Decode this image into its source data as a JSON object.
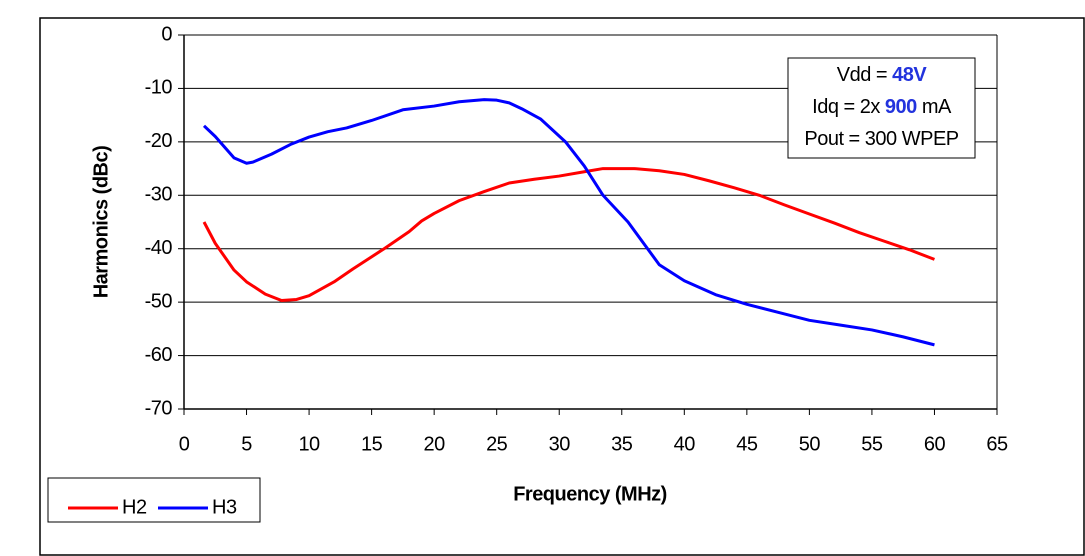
{
  "chart_data": {
    "type": "line",
    "xlabel": "Frequency (MHz)",
    "ylabel": "Harmonics (dBc)",
    "xlim": [
      0,
      65
    ],
    "xticks": [
      0,
      5,
      10,
      15,
      20,
      25,
      30,
      35,
      40,
      45,
      50,
      55,
      60,
      65
    ],
    "ylim": [
      -70,
      0
    ],
    "yticks": [
      -70,
      -60,
      -50,
      -40,
      -30,
      -20,
      -10,
      0
    ],
    "grid": true,
    "legend": "bottom-left",
    "annotation": [
      [
        "Vdd =",
        "48V"
      ],
      [
        "Idq = 2x",
        "900",
        "mA"
      ],
      [
        "Pout = 300 WPEP"
      ]
    ],
    "series": [
      {
        "name": "H2",
        "color": "#ff0000",
        "x": [
          1.6,
          2.5,
          4,
          5,
          6.5,
          7.8,
          9,
          10,
          12,
          13.5,
          16,
          18,
          19,
          20,
          22,
          24,
          26,
          28,
          30,
          32,
          33.5,
          36,
          38,
          40,
          42,
          44,
          46,
          48,
          50,
          52,
          54,
          56,
          58,
          60
        ],
        "values": [
          -35,
          -39,
          -44,
          -46.2,
          -48.5,
          -49.7,
          -49.5,
          -48.8,
          -46.2,
          -43.8,
          -40,
          -36.8,
          -34.8,
          -33.4,
          -31,
          -29.3,
          -27.7,
          -27,
          -26.4,
          -25.6,
          -25,
          -25,
          -25.4,
          -26.1,
          -27.3,
          -28.6,
          -30,
          -31.8,
          -33.5,
          -35.2,
          -37,
          -38.6,
          -40.2,
          -42
        ]
      },
      {
        "name": "H3",
        "color": "#0000ff",
        "x": [
          1.6,
          2.5,
          4,
          5,
          5.5,
          7,
          8.5,
          10,
          11.5,
          13,
          15,
          17.5,
          20,
          22,
          24,
          25,
          26,
          27,
          28.5,
          30.5,
          32,
          33.5,
          35.5,
          38,
          40,
          42.5,
          45,
          47.5,
          50,
          52.5,
          55,
          57.5,
          60
        ],
        "values": [
          -17,
          -19,
          -23,
          -24,
          -23.8,
          -22.3,
          -20.5,
          -19.1,
          -18.1,
          -17.4,
          -16,
          -14,
          -13.3,
          -12.5,
          -12.1,
          -12.2,
          -12.7,
          -13.8,
          -15.7,
          -20,
          -24.5,
          -30,
          -35,
          -43,
          -46,
          -48.6,
          -50.4,
          -51.9,
          -53.4,
          -54.3,
          -55.2,
          -56.5,
          -58
        ]
      }
    ]
  }
}
